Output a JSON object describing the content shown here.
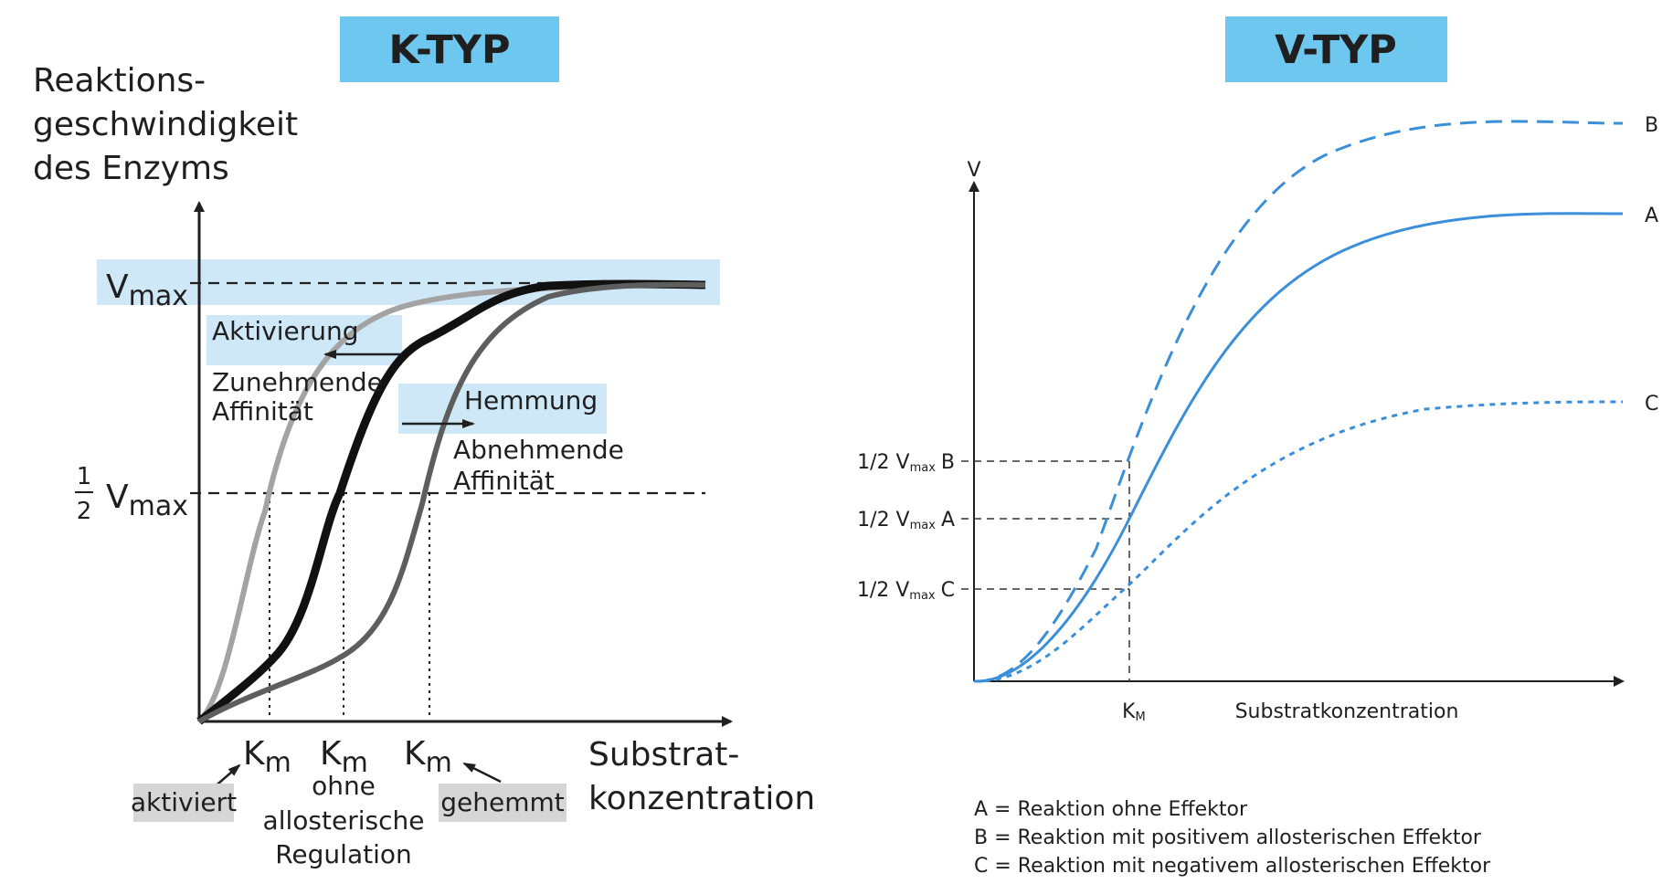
{
  "k_panel": {
    "title": "K-TYP",
    "y_axis_label_lines": [
      "Reaktions-",
      "geschwindigkeit",
      "des Enzyms"
    ],
    "vmax_label": {
      "main": "V",
      "sub": "max"
    },
    "half_vmax_label": {
      "num": "1",
      "den": "2",
      "main": "V",
      "sub": "max"
    },
    "activation": {
      "box_label": "Aktivierung",
      "note_lines": [
        "Zunehmende",
        "Affinität"
      ]
    },
    "inhibition": {
      "box_label": "Hemmung",
      "note_lines": [
        "Abnehmende",
        "Affinität"
      ]
    },
    "x_axis_label_lines": [
      "Substrat-",
      "konzentration"
    ],
    "km_labels": {
      "activated": {
        "main": "K",
        "sub": "m",
        "tag": "aktiviert"
      },
      "normal": {
        "main": "K",
        "sub": "m",
        "note_lines": [
          "ohne",
          "allosterische",
          "Regulation"
        ]
      },
      "inhibited": {
        "main": "K",
        "sub": "m",
        "tag": "gehemmt"
      }
    },
    "colors": {
      "highlight": "#cfe8f8",
      "title_bg": "#6ec7ee",
      "tag_bg": "#d6d6d6",
      "activated_curve": "#a3a3a3",
      "normal_curve": "#111111",
      "inhibited_curve": "#5e5e5e"
    }
  },
  "v_panel": {
    "title": "V-TYP",
    "y_axis_label": "V",
    "x_axis_label": "Substratkonzentration",
    "km_label": {
      "main": "K",
      "sub": "M"
    },
    "half_vmax_labels": [
      {
        "prefix": "1/2 V",
        "sub": "max",
        "suffix": "B"
      },
      {
        "prefix": "1/2 V",
        "sub": "max",
        "suffix": "A"
      },
      {
        "prefix": "1/2 V",
        "sub": "max",
        "suffix": "C"
      }
    ],
    "curve_labels": {
      "A": "A",
      "B": "B",
      "C": "C"
    },
    "legend": [
      "A = Reaktion ohne Effektor",
      "B = Reaktion mit positivem allosterischen Effektor",
      "C = Reaktion mit negativem allosterischen Effektor"
    ],
    "colors": {
      "curve": "#3a8fd8",
      "title_bg": "#6ec7ee"
    }
  }
}
